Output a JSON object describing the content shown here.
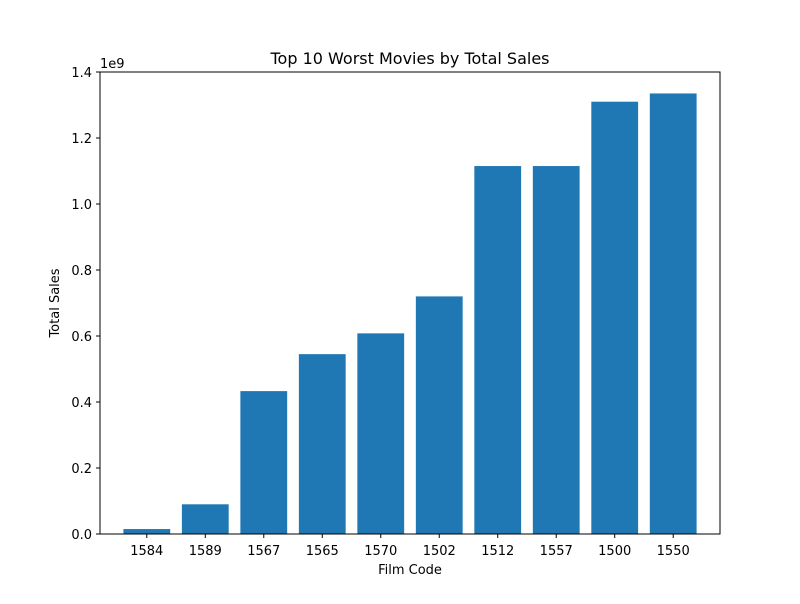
{
  "chart_data": {
    "type": "bar",
    "title": "Top 10 Worst Movies by Total Sales",
    "xlabel": "Film Code",
    "ylabel": "Total Sales",
    "y_offset_label": "1e9",
    "categories": [
      "1584",
      "1589",
      "1567",
      "1565",
      "1570",
      "1502",
      "1512",
      "1557",
      "1500",
      "1550"
    ],
    "values": [
      15000000,
      90000000,
      433000000,
      545000000,
      608000000,
      720000000,
      1115000000,
      1115000000,
      1310000000,
      1335000000
    ],
    "ylim": [
      0,
      1400000000
    ],
    "yticks": [
      0,
      200000000,
      400000000,
      600000000,
      800000000,
      1000000000,
      1200000000,
      1400000000
    ],
    "ytick_labels": [
      "0.0",
      "0.2",
      "0.4",
      "0.6",
      "0.8",
      "1.0",
      "1.2",
      "1.4"
    ],
    "bar_color": "#1f77b4",
    "grid": false,
    "legend": "none"
  }
}
